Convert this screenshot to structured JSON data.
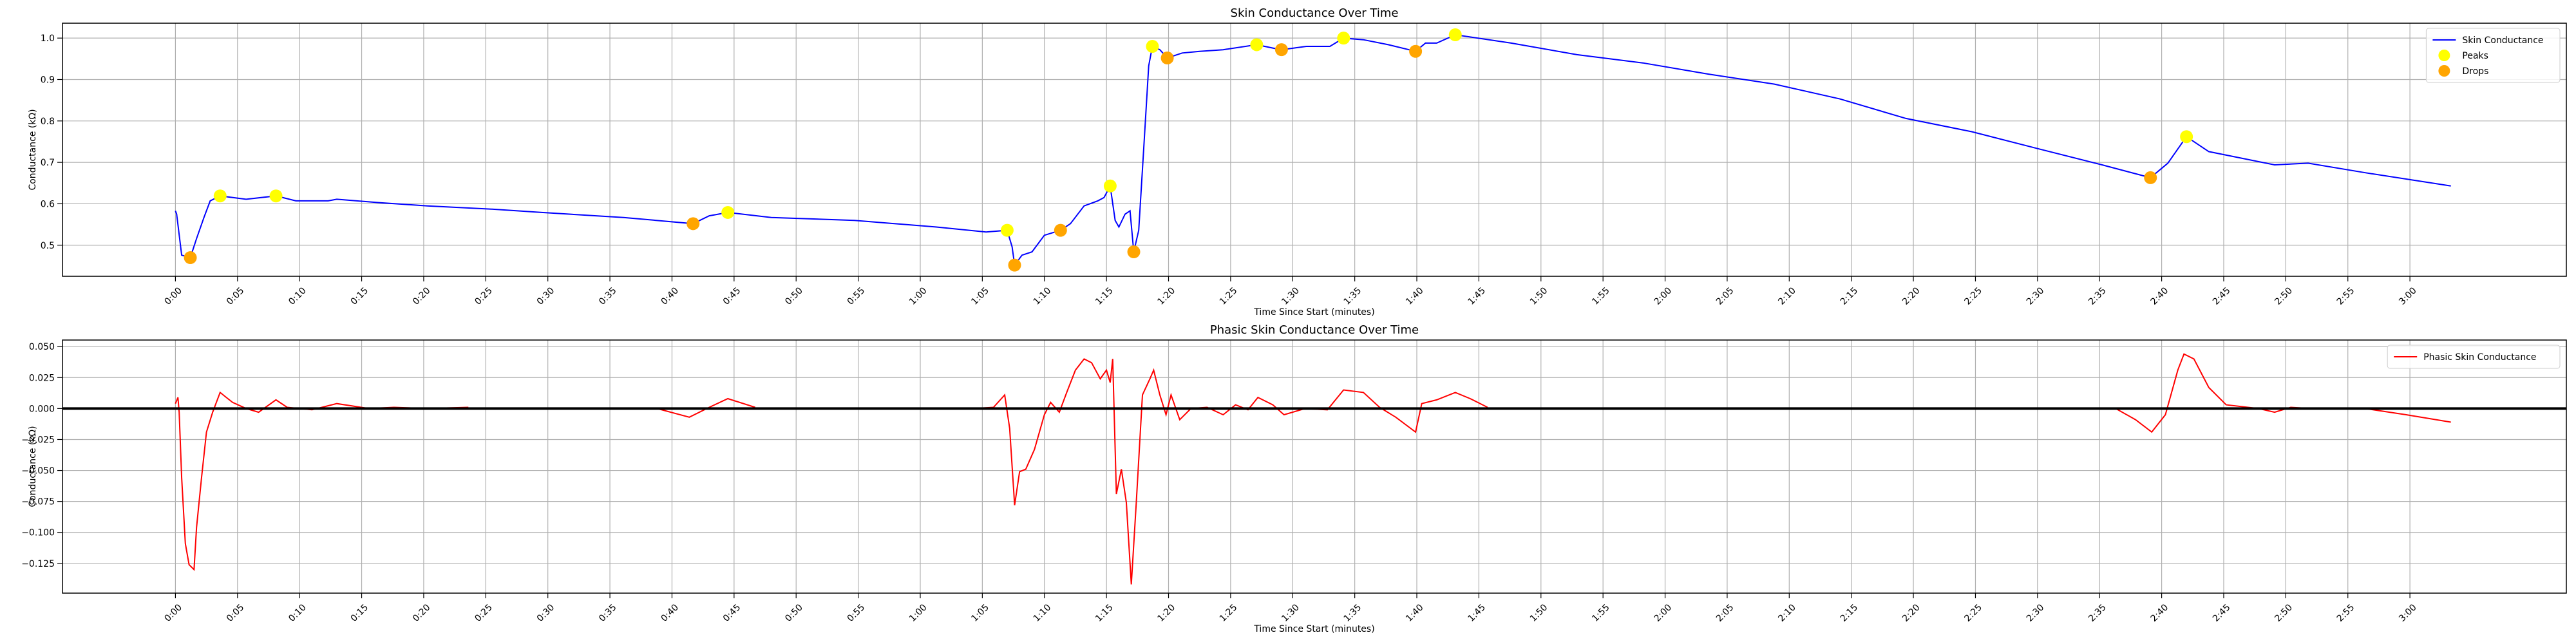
{
  "chart_data": [
    {
      "type": "line",
      "title": "Skin Conductance Over Time",
      "xlabel": "Time Since Start (minutes)",
      "ylabel": "Conductance (kΩ)",
      "grid": true,
      "legend": "upper right",
      "xlim": [
        -9.1,
        192.6
      ],
      "ylim": [
        0.425,
        1.036
      ],
      "xticks": [
        {
          "value": 0,
          "label": "0:00"
        },
        {
          "value": 5,
          "label": "0:05"
        },
        {
          "value": 10,
          "label": "0:10"
        },
        {
          "value": 15,
          "label": "0:15"
        },
        {
          "value": 20,
          "label": "0:20"
        },
        {
          "value": 25,
          "label": "0:25"
        },
        {
          "value": 30,
          "label": "0:30"
        },
        {
          "value": 35,
          "label": "0:35"
        },
        {
          "value": 40,
          "label": "0:40"
        },
        {
          "value": 45,
          "label": "0:45"
        },
        {
          "value": 50,
          "label": "0:50"
        },
        {
          "value": 55,
          "label": "0:55"
        },
        {
          "value": 60,
          "label": "1:00"
        },
        {
          "value": 65,
          "label": "1:05"
        },
        {
          "value": 70,
          "label": "1:10"
        },
        {
          "value": 75,
          "label": "1:15"
        },
        {
          "value": 80,
          "label": "1:20"
        },
        {
          "value": 85,
          "label": "1:25"
        },
        {
          "value": 90,
          "label": "1:30"
        },
        {
          "value": 95,
          "label": "1:35"
        },
        {
          "value": 100,
          "label": "1:40"
        },
        {
          "value": 105,
          "label": "1:45"
        },
        {
          "value": 110,
          "label": "1:50"
        },
        {
          "value": 115,
          "label": "1:55"
        },
        {
          "value": 120,
          "label": "2:00"
        },
        {
          "value": 125,
          "label": "2:05"
        },
        {
          "value": 130,
          "label": "2:10"
        },
        {
          "value": 135,
          "label": "2:15"
        },
        {
          "value": 140,
          "label": "2:20"
        },
        {
          "value": 145,
          "label": "2:25"
        },
        {
          "value": 150,
          "label": "2:30"
        },
        {
          "value": 155,
          "label": "2:35"
        },
        {
          "value": 160,
          "label": "2:40"
        },
        {
          "value": 165,
          "label": "2:45"
        },
        {
          "value": 170,
          "label": "2:50"
        },
        {
          "value": 175,
          "label": "2:55"
        },
        {
          "value": 180,
          "label": "3:00"
        }
      ],
      "yticks": [
        0.5,
        0.6,
        0.7,
        0.8,
        0.9,
        {
          "value": 1,
          "label": "1.0"
        }
      ],
      "series": [
        {
          "name": "Skin Conductance",
          "style": "line",
          "color": "#0000ff",
          "x": [
            0,
            0.1,
            0.5,
            1.2,
            1.7,
            2.3,
            2.8,
            3.6,
            5.7,
            8.1,
            9.7,
            12.3,
            13.0,
            16.3,
            20.3,
            25.5,
            29.5,
            36.1,
            41.7,
            43.0,
            44.5,
            48.0,
            54.7,
            61.3,
            65.3,
            67.0,
            67.4,
            67.6,
            68.2,
            69.0,
            70.0,
            71.3,
            72.1,
            73.2,
            74.3,
            74.8,
            75.3,
            75.7,
            76.0,
            76.5,
            76.9,
            77.2,
            77.6,
            78.0,
            78.4,
            78.7,
            79.3,
            79.9,
            81.1,
            82.5,
            84.4,
            87.1,
            88.4,
            89.1,
            91.1,
            93.0,
            94.1,
            95.7,
            97.7,
            99.9,
            100.7,
            101.6,
            103.1,
            107.6,
            112.9,
            118.2,
            123.5,
            128.8,
            134.1,
            139.4,
            144.7,
            149.9,
            155.2,
            159.1,
            160.5,
            162.0,
            163.8,
            169.1,
            171.8,
            176.4,
            183.3
          ],
          "values": [
            0.583,
            0.575,
            0.476,
            0.47,
            0.516,
            0.567,
            0.607,
            0.619,
            0.611,
            0.619,
            0.607,
            0.607,
            0.611,
            0.603,
            0.595,
            0.587,
            0.579,
            0.567,
            0.552,
            0.571,
            0.579,
            0.567,
            0.56,
            0.544,
            0.532,
            0.536,
            0.496,
            0.452,
            0.476,
            0.484,
            0.524,
            0.536,
            0.552,
            0.595,
            0.607,
            0.615,
            0.643,
            0.56,
            0.544,
            0.575,
            0.583,
            0.484,
            0.536,
            0.734,
            0.933,
            0.98,
            0.972,
            0.952,
            0.964,
            0.968,
            0.972,
            0.984,
            0.976,
            0.972,
            0.98,
            0.98,
            1.0,
            0.996,
            0.984,
            0.968,
            0.988,
            0.988,
            1.008,
            0.988,
            0.96,
            0.94,
            0.913,
            0.889,
            0.853,
            0.806,
            0.774,
            0.734,
            0.694,
            0.663,
            0.698,
            0.762,
            0.726,
            0.694,
            0.698,
            0.675,
            0.643
          ]
        },
        {
          "name": "Peaks",
          "style": "scatter",
          "color": "#ffff00",
          "x": [
            3.6,
            8.1,
            44.5,
            67.0,
            75.3,
            78.7,
            87.1,
            94.1,
            103.1,
            162.0
          ],
          "values": [
            0.619,
            0.619,
            0.579,
            0.536,
            0.643,
            0.98,
            0.984,
            1.0,
            1.008,
            0.762
          ]
        },
        {
          "name": "Drops",
          "style": "scatter",
          "color": "#ffa500",
          "x": [
            1.2,
            41.7,
            67.6,
            71.3,
            77.2,
            79.9,
            89.1,
            99.9,
            159.1
          ],
          "values": [
            0.47,
            0.552,
            0.452,
            0.536,
            0.484,
            0.952,
            0.972,
            0.968,
            0.663
          ]
        }
      ]
    },
    {
      "type": "line",
      "title": "Phasic Skin Conductance Over Time",
      "xlabel": "Time Since Start (minutes)",
      "ylabel": "Conductance (kΩ)",
      "grid": true,
      "legend": "upper right",
      "hline": 0,
      "xlim": [
        -9.1,
        192.6
      ],
      "ylim": [
        -0.149,
        0.0553
      ],
      "xticks": [
        {
          "value": 0,
          "label": "0:00"
        },
        {
          "value": 5,
          "label": "0:05"
        },
        {
          "value": 10,
          "label": "0:10"
        },
        {
          "value": 15,
          "label": "0:15"
        },
        {
          "value": 20,
          "label": "0:20"
        },
        {
          "value": 25,
          "label": "0:25"
        },
        {
          "value": 30,
          "label": "0:30"
        },
        {
          "value": 35,
          "label": "0:35"
        },
        {
          "value": 40,
          "label": "0:40"
        },
        {
          "value": 45,
          "label": "0:45"
        },
        {
          "value": 50,
          "label": "0:50"
        },
        {
          "value": 55,
          "label": "0:55"
        },
        {
          "value": 60,
          "label": "1:00"
        },
        {
          "value": 65,
          "label": "1:05"
        },
        {
          "value": 70,
          "label": "1:10"
        },
        {
          "value": 75,
          "label": "1:15"
        },
        {
          "value": 80,
          "label": "1:20"
        },
        {
          "value": 85,
          "label": "1:25"
        },
        {
          "value": 90,
          "label": "1:30"
        },
        {
          "value": 95,
          "label": "1:35"
        },
        {
          "value": 100,
          "label": "1:40"
        },
        {
          "value": 105,
          "label": "1:45"
        },
        {
          "value": 110,
          "label": "1:50"
        },
        {
          "value": 115,
          "label": "1:55"
        },
        {
          "value": 120,
          "label": "2:00"
        },
        {
          "value": 125,
          "label": "2:05"
        },
        {
          "value": 130,
          "label": "2:10"
        },
        {
          "value": 135,
          "label": "2:15"
        },
        {
          "value": 140,
          "label": "2:20"
        },
        {
          "value": 145,
          "label": "2:25"
        },
        {
          "value": 150,
          "label": "2:30"
        },
        {
          "value": 155,
          "label": "2:35"
        },
        {
          "value": 160,
          "label": "2:40"
        },
        {
          "value": 165,
          "label": "2:45"
        },
        {
          "value": 170,
          "label": "2:50"
        },
        {
          "value": 175,
          "label": "2:55"
        },
        {
          "value": 180,
          "label": "3:00"
        }
      ],
      "yticks": [
        {
          "value": 0.05,
          "label": "0.050"
        },
        {
          "value": 0.025,
          "label": "0.025"
        },
        {
          "value": 0,
          "label": "0.000"
        },
        {
          "value": -0.025,
          "label": "−0.025"
        },
        {
          "value": -0.05,
          "label": "−0.050"
        },
        {
          "value": -0.075,
          "label": "−0.075"
        },
        {
          "value": -0.1,
          "label": "−0.100"
        },
        {
          "value": -0.125,
          "label": "−0.125"
        }
      ],
      "series": [
        {
          "name": "Phasic Skin Conductance",
          "style": "line",
          "color": "#ff0000",
          "x": [
            0,
            0.2,
            0.3,
            0.5,
            0.8,
            1.1,
            1.5,
            1.7,
            2.1,
            2.5,
            3.0,
            3.6,
            4.1,
            4.6,
            5.7,
            6.7,
            8.1,
            9.0,
            11.0,
            13.0,
            15.6,
            17.6,
            20.3,
            23.6,
            30,
            38.8,
            41.4,
            43.0,
            44.5,
            46.7,
            50,
            64.3,
            65.9,
            66.8,
            67.2,
            67.6,
            68.0,
            68.5,
            69.2,
            70.0,
            70.5,
            71.2,
            71.8,
            72.5,
            73.2,
            73.8,
            74.5,
            75.0,
            75.3,
            75.5,
            75.8,
            76.2,
            76.6,
            77.0,
            77.4,
            77.9,
            78.5,
            78.8,
            79.3,
            79.8,
            80.2,
            80.9,
            81.8,
            83.1,
            84.4,
            85.4,
            86.4,
            87.2,
            88.4,
            89.3,
            91.0,
            92.8,
            94.1,
            95.7,
            97.0,
            98.3,
            99.9,
            100.4,
            101.6,
            103.1,
            104.3,
            105.7,
            120,
            156.3,
            157.9,
            159.2,
            160.3,
            161.3,
            161.8,
            162.6,
            163.8,
            165.2,
            167.8,
            169.1,
            170.4,
            172.0,
            174,
            176.4,
            179.7,
            183.3
          ],
          "values": [
            0.004,
            0.009,
            -0.003,
            -0.056,
            -0.109,
            -0.126,
            -0.13,
            -0.096,
            -0.056,
            -0.019,
            -0.003,
            0.013,
            0.009,
            0.005,
            0,
            -0.003,
            0.007,
            0.001,
            -0.001,
            0.004,
            0,
            0.001,
            0,
            0.001,
            null,
            0,
            -0.007,
            0.001,
            0.008,
            0.001,
            null,
            0,
            0.001,
            0.011,
            -0.016,
            -0.078,
            -0.051,
            -0.049,
            -0.033,
            -0.005,
            0.005,
            -0.003,
            0.013,
            0.031,
            0.04,
            0.037,
            0.024,
            0.031,
            0.021,
            0.04,
            -0.069,
            -0.049,
            -0.076,
            -0.142,
            -0.076,
            0.011,
            0.024,
            0.031,
            0.011,
            -0.005,
            0.011,
            -0.009,
            0,
            0.001,
            -0.005,
            0.003,
            -0.001,
            0.009,
            0.003,
            -0.005,
            0,
            -0.001,
            0.015,
            0.013,
            0.001,
            -0.007,
            -0.019,
            0.004,
            0.007,
            0.013,
            0.008,
            0.001,
            null,
            0,
            -0.009,
            -0.019,
            -0.005,
            0.031,
            0.044,
            0.04,
            0.017,
            0.003,
            0,
            -0.003,
            0.001,
            0,
            null,
            0,
            -0.005,
            -0.011
          ]
        }
      ]
    }
  ]
}
